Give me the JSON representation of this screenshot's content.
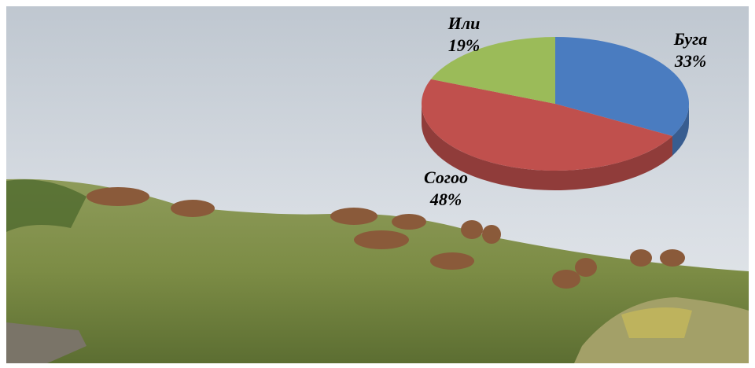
{
  "chart_data": {
    "type": "pie",
    "categories": [
      "Буга",
      "Согоо",
      "Или"
    ],
    "values": [
      33,
      48,
      19
    ],
    "value_labels": [
      "33%",
      "48%",
      "19%"
    ],
    "colors": [
      "#4a7cc0",
      "#c0504d",
      "#9bbb59"
    ]
  }
}
